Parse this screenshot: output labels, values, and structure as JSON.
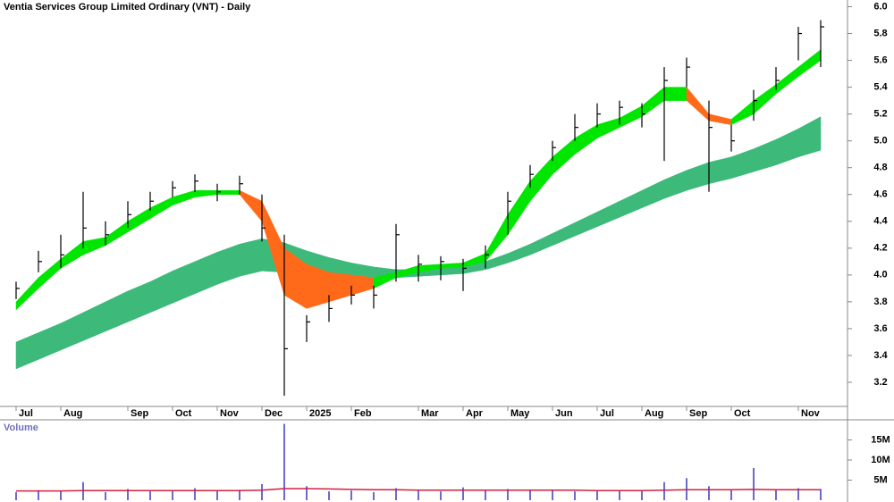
{
  "chart_data": [
    {
      "type": "ohlc",
      "title": "Ventia Services Group Limited Ordinary (VNT) - Daily",
      "categories": [
        "Jul",
        null,
        "Aug",
        null,
        null,
        "Sep",
        null,
        "Oct",
        null,
        "Nov",
        null,
        "Dec",
        null,
        "2025",
        null,
        "Feb",
        null,
        null,
        "Mar",
        null,
        "Apr",
        null,
        "May",
        null,
        "Jun",
        null,
        "Jul",
        null,
        "Aug",
        null,
        "Sep",
        null,
        "Oct",
        null,
        null,
        "Nov",
        null
      ],
      "close": [
        3.9,
        4.1,
        4.15,
        4.35,
        4.3,
        4.45,
        4.55,
        4.65,
        4.7,
        4.62,
        4.68,
        4.35,
        3.45,
        3.65,
        3.75,
        3.85,
        3.85,
        4.3,
        4.08,
        4.1,
        4.05,
        4.15,
        4.55,
        4.75,
        4.95,
        5.1,
        5.2,
        5.25,
        5.2,
        5.45,
        5.55,
        5.1,
        5.0,
        5.3,
        5.45,
        5.8,
        5.85
      ],
      "high": [
        3.95,
        4.18,
        4.3,
        4.62,
        4.4,
        4.55,
        4.62,
        4.7,
        4.75,
        4.68,
        4.74,
        4.6,
        4.3,
        3.7,
        3.85,
        3.92,
        3.92,
        4.38,
        4.15,
        4.14,
        4.12,
        4.22,
        4.62,
        4.82,
        5.0,
        5.2,
        5.28,
        5.3,
        5.28,
        5.55,
        5.62,
        5.3,
        5.12,
        5.38,
        5.55,
        5.85,
        5.9
      ],
      "low": [
        3.82,
        4.02,
        4.05,
        4.2,
        4.22,
        4.35,
        4.48,
        4.58,
        4.62,
        4.55,
        4.6,
        4.25,
        3.1,
        3.5,
        3.65,
        3.78,
        3.75,
        3.95,
        3.95,
        3.96,
        3.88,
        4.05,
        4.3,
        4.65,
        4.85,
        5.0,
        5.1,
        5.12,
        5.1,
        4.85,
        5.4,
        4.62,
        4.92,
        5.15,
        5.38,
        5.6,
        5.55
      ],
      "fast_band": {
        "upper": [
          3.8,
          3.98,
          4.12,
          4.25,
          4.28,
          4.4,
          4.5,
          4.58,
          4.63,
          4.63,
          4.63,
          4.55,
          4.2,
          4.08,
          4.02,
          4.0,
          3.98,
          4.02,
          4.07,
          4.08,
          4.09,
          4.16,
          4.45,
          4.7,
          4.88,
          5.02,
          5.12,
          5.17,
          5.26,
          5.4,
          5.4,
          5.2,
          5.16,
          5.3,
          5.42,
          5.55,
          5.68
        ],
        "lower": [
          3.74,
          3.9,
          4.05,
          4.15,
          4.22,
          4.32,
          4.42,
          4.52,
          4.58,
          4.6,
          4.6,
          4.4,
          3.85,
          3.75,
          3.8,
          3.85,
          3.9,
          3.98,
          4.02,
          4.05,
          4.06,
          4.1,
          4.3,
          4.55,
          4.75,
          4.9,
          5.02,
          5.1,
          5.18,
          5.3,
          5.3,
          5.15,
          5.12,
          5.2,
          5.35,
          5.48,
          5.6
        ],
        "up_color": "#00e600",
        "down_color": "#ff6a1a"
      },
      "slow_band": {
        "upper": [
          3.5,
          3.57,
          3.64,
          3.72,
          3.8,
          3.88,
          3.95,
          4.03,
          4.1,
          4.17,
          4.23,
          4.27,
          4.24,
          4.18,
          4.13,
          4.09,
          4.06,
          4.04,
          4.04,
          4.05,
          4.06,
          4.1,
          4.16,
          4.23,
          4.31,
          4.39,
          4.47,
          4.55,
          4.63,
          4.71,
          4.78,
          4.84,
          4.88,
          4.94,
          5.01,
          5.09,
          5.18
        ],
        "lower": [
          3.3,
          3.37,
          3.44,
          3.51,
          3.58,
          3.65,
          3.72,
          3.79,
          3.86,
          3.93,
          3.99,
          4.03,
          4.02,
          4.0,
          3.99,
          3.98,
          3.98,
          3.98,
          3.99,
          4.0,
          4.01,
          4.04,
          4.09,
          4.15,
          4.22,
          4.29,
          4.36,
          4.43,
          4.5,
          4.57,
          4.63,
          4.68,
          4.72,
          4.77,
          4.82,
          4.88,
          4.93
        ],
        "color": "#3dba7a"
      },
      "color": "#000000",
      "ylim": [
        3.02,
        6.05
      ],
      "yticks": [
        3.2,
        3.4,
        3.6,
        3.8,
        {
          "value": 4,
          "label": "4.0"
        },
        4.2,
        4.4,
        4.6,
        4.8,
        {
          "value": 5,
          "label": "5.0"
        },
        5.2,
        5.4,
        5.6,
        5.8,
        {
          "value": 6,
          "label": "6.0"
        }
      ]
    },
    {
      "type": "bar",
      "title": "Volume",
      "values": [
        2.0,
        2.5,
        2.2,
        4.5,
        2.0,
        2.8,
        2.2,
        2.5,
        3.0,
        2.4,
        2.6,
        4.0,
        19.0,
        3.5,
        2.2,
        2.4,
        2.0,
        3.0,
        2.6,
        2.2,
        3.2,
        2.4,
        2.8,
        2.5,
        2.6,
        2.2,
        2.4,
        2.3,
        2.5,
        4.5,
        5.5,
        3.5,
        2.5,
        8.0,
        2.6,
        3.0,
        2.8
      ],
      "average": [
        2.3,
        2.3,
        2.3,
        2.4,
        2.4,
        2.4,
        2.4,
        2.4,
        2.4,
        2.4,
        2.4,
        2.5,
        2.9,
        2.9,
        2.8,
        2.7,
        2.6,
        2.6,
        2.5,
        2.5,
        2.5,
        2.5,
        2.5,
        2.5,
        2.5,
        2.5,
        2.4,
        2.4,
        2.4,
        2.5,
        2.6,
        2.6,
        2.6,
        2.7,
        2.6,
        2.6,
        2.6
      ],
      "color": "#6a6ad0",
      "average_color": "#d02040",
      "ylim": [
        0,
        20
      ],
      "yticks": [
        {
          "value": 5,
          "label": "5M"
        },
        {
          "value": 10,
          "label": "10M"
        },
        {
          "value": 15,
          "label": "15M"
        }
      ]
    }
  ]
}
